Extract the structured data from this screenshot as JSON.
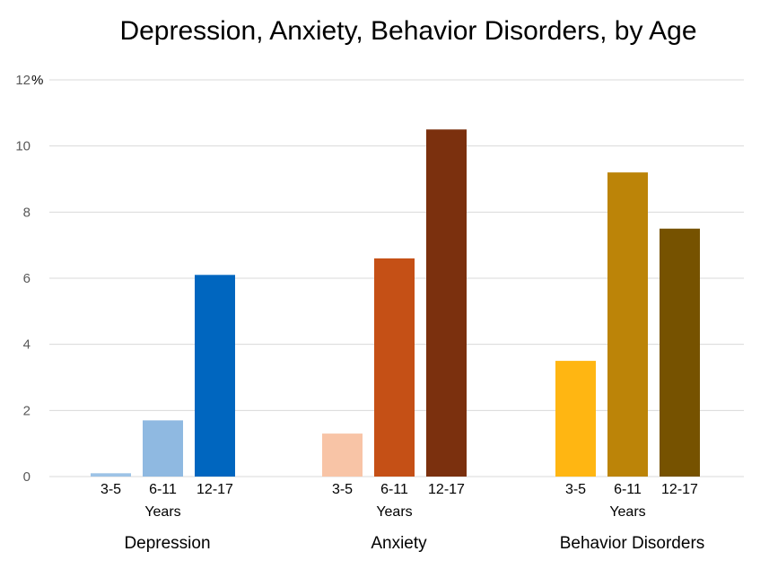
{
  "chart_data": {
    "type": "bar",
    "title": "Depression, Anxiety, Behavior Disorders, by Age",
    "y_unit": "%",
    "ylim": [
      0,
      12
    ],
    "y_ticks": [
      "0",
      "2",
      "4",
      "6",
      "8",
      "10",
      "12"
    ],
    "grid": true,
    "groups": [
      {
        "name": "Depression",
        "sub_label": "Years",
        "categories": [
          "3-5",
          "6-11",
          "12-17"
        ],
        "values": [
          0.1,
          1.7,
          6.1
        ],
        "colors": [
          "#9dc3e6",
          "#8fb9e1",
          "#0066bf"
        ]
      },
      {
        "name": "Anxiety",
        "sub_label": "Years",
        "categories": [
          "3-5",
          "6-11",
          "12-17"
        ],
        "values": [
          1.3,
          6.6,
          10.5
        ],
        "colors": [
          "#f8c4a6",
          "#c55016",
          "#7b300e"
        ]
      },
      {
        "name": "Behavior Disorders",
        "sub_label": "Years",
        "categories": [
          "3-5",
          "6-11",
          "12-17"
        ],
        "values": [
          3.5,
          9.2,
          7.5
        ],
        "colors": [
          "#ffb612",
          "#bc8408",
          "#765200"
        ]
      }
    ]
  }
}
